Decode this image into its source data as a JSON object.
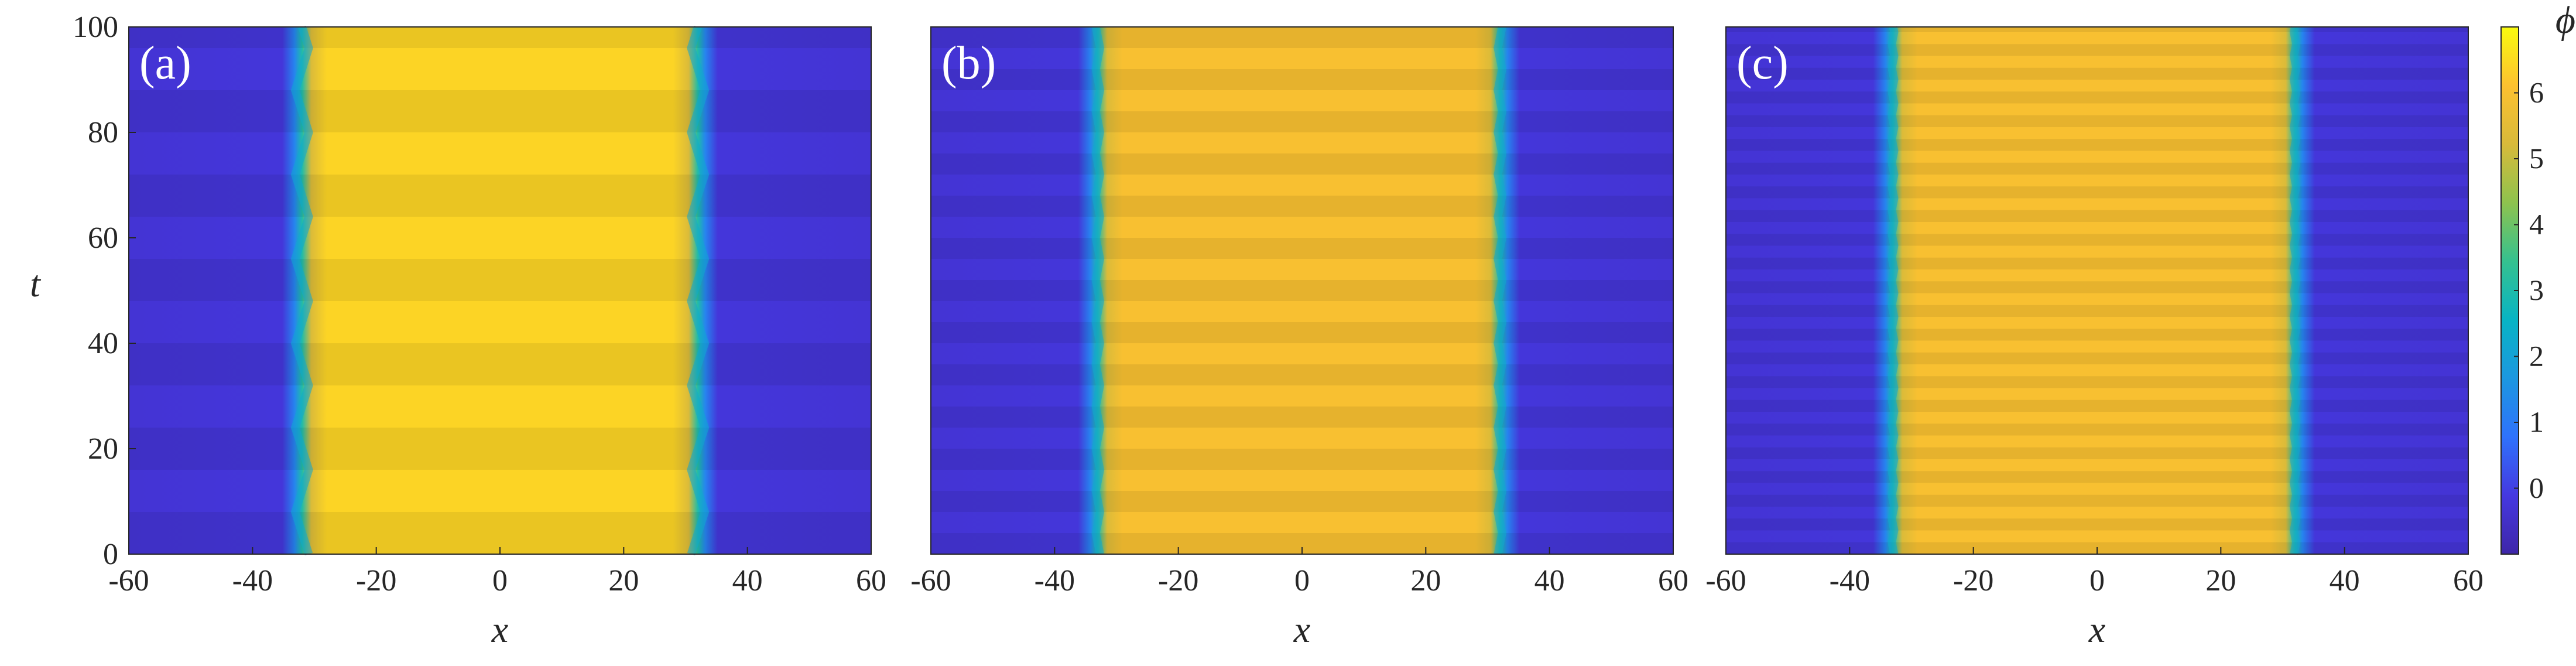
{
  "chart_data": [
    {
      "type": "heatmap",
      "panel_label": "(a)",
      "xlabel": "x",
      "ylabel": "t",
      "xlim": [
        -60,
        60
      ],
      "ylim": [
        0,
        100
      ],
      "x_ticks": [
        "-60",
        "-40",
        "-20",
        "0",
        "20",
        "40",
        "60"
      ],
      "y_ticks": [
        "0",
        "20",
        "40",
        "60",
        "80",
        "100"
      ],
      "front_left_x": -32,
      "front_right_x": 32,
      "front_wiggle": 2.2,
      "stripe_period_t": 16,
      "inner_value": 6.4,
      "outer_value": -0.3
    },
    {
      "type": "heatmap",
      "panel_label": "(b)",
      "xlabel": "x",
      "ylabel": "",
      "xlim": [
        -60,
        60
      ],
      "ylim": [
        0,
        100
      ],
      "x_ticks": [
        "-60",
        "-40",
        "-20",
        "0",
        "20",
        "40",
        "60"
      ],
      "y_ticks": [],
      "front_left_x": -33,
      "front_right_x": 32,
      "front_wiggle": 0.7,
      "stripe_period_t": 8,
      "inner_value": 6.0,
      "outer_value": -0.3
    },
    {
      "type": "heatmap",
      "panel_label": "(c)",
      "xlabel": "x",
      "ylabel": "",
      "xlim": [
        -60,
        60
      ],
      "ylim": [
        0,
        100
      ],
      "x_ticks": [
        "-60",
        "-40",
        "-20",
        "0",
        "20",
        "40",
        "60"
      ],
      "y_ticks": [],
      "front_left_x": -33,
      "front_right_x": 32,
      "front_wiggle": 0.4,
      "stripe_period_t": 4.5,
      "inner_value": 6.0,
      "outer_value": -0.3
    }
  ],
  "colorbar": {
    "title": "ϕ",
    "range": [
      -1,
      7
    ],
    "ticks": [
      "0",
      "1",
      "2",
      "3",
      "4",
      "5",
      "6"
    ],
    "colormap": [
      "#3e26a8",
      "#4538e0",
      "#2f72fc",
      "#1c97e0",
      "#08b4c4",
      "#35c18f",
      "#8ec34e",
      "#d8ba3a",
      "#fdc130",
      "#f9fb0e"
    ]
  }
}
